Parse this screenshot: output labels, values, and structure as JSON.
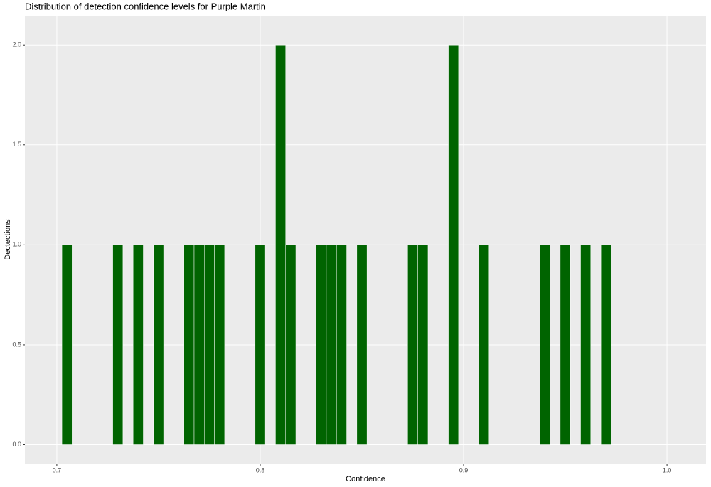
{
  "chart_data": {
    "type": "histogram",
    "title": "Distribution of detection confidence levels for Purple Martin",
    "x_label": "Confidence",
    "y_label": "Dectections",
    "bins": [
      0.7025,
      0.7075,
      0.7125,
      0.7175,
      0.7225,
      0.7275,
      0.7325,
      0.7375,
      0.7425,
      0.7475,
      0.7525,
      0.7575,
      0.7625,
      0.7675,
      0.7725,
      0.7775,
      0.7825,
      0.7875,
      0.7925,
      0.7975,
      0.8025,
      0.8075,
      0.8125,
      0.8175,
      0.8225,
      0.8275,
      0.8325,
      0.8375,
      0.8425,
      0.8475,
      0.8525,
      0.8575,
      0.8625,
      0.8675,
      0.8725,
      0.8775,
      0.8825,
      0.8875,
      0.8925,
      0.8975,
      0.9025,
      0.9075,
      0.9125,
      0.9175,
      0.9225,
      0.9275,
      0.9325,
      0.9375,
      0.9425,
      0.9475,
      0.9525,
      0.9575,
      0.9625,
      0.9675,
      0.9725
    ],
    "values": [
      1,
      0,
      0,
      0,
      0,
      1,
      0,
      1,
      0,
      1,
      0,
      0,
      1,
      1,
      1,
      1,
      0,
      0,
      0,
      1,
      0,
      2,
      1,
      0,
      0,
      1,
      1,
      1,
      0,
      1,
      0,
      0,
      0,
      0,
      1,
      1,
      0,
      0,
      2,
      0,
      0,
      1,
      0,
      0,
      0,
      0,
      0,
      1,
      0,
      1,
      0,
      1,
      0,
      1
    ],
    "color": "#006400",
    "xlim": [
      0.6843,
      1.0192
    ],
    "xticks": [
      0.7,
      0.8,
      0.9,
      {
        "value": 1,
        "label": "1.0"
      }
    ],
    "ylim": [
      -0.0942,
      2.1466
    ],
    "yticks": [
      {
        "value": 0,
        "label": "0.0"
      },
      0.5,
      {
        "value": 1,
        "label": "1.0"
      },
      1.5,
      {
        "value": 2,
        "label": "2.0"
      }
    ],
    "grid": true
  }
}
